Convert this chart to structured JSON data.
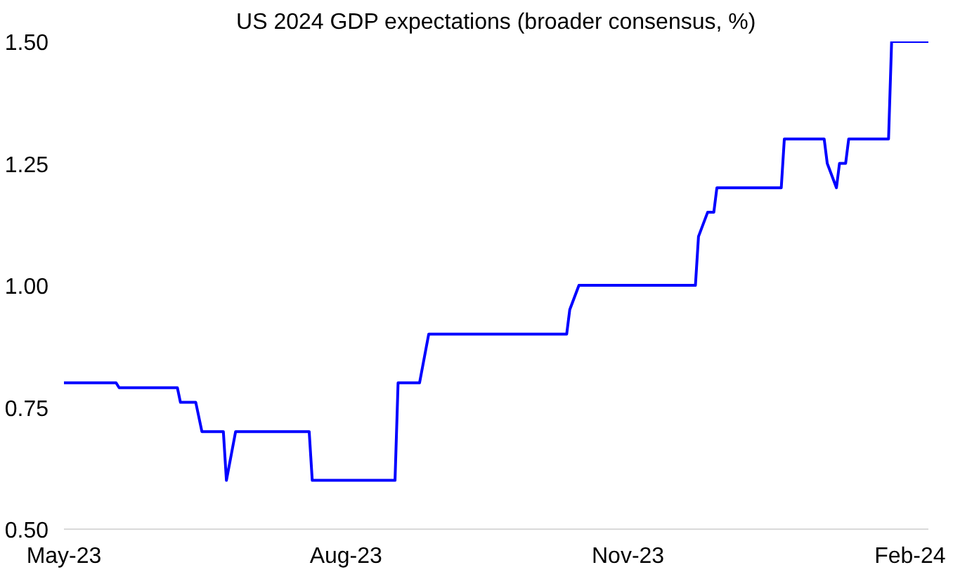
{
  "chart_data": {
    "type": "line",
    "title": "US 2024 GDP expectations (broader consensus, %)",
    "x": [
      "2023-05-01",
      "2023-05-18",
      "2023-05-19",
      "2023-06-07",
      "2023-06-08",
      "2023-06-13",
      "2023-06-15",
      "2023-06-22",
      "2023-06-23",
      "2023-06-26",
      "2023-07-20",
      "2023-07-21",
      "2023-08-17",
      "2023-08-18",
      "2023-08-25",
      "2023-08-28",
      "2023-10-12",
      "2023-10-13",
      "2023-10-16",
      "2023-11-23",
      "2023-11-24",
      "2023-11-27",
      "2023-11-29",
      "2023-11-30",
      "2023-12-21",
      "2023-12-22",
      "2024-01-04",
      "2024-01-05",
      "2024-01-08",
      "2024-01-09",
      "2024-01-11",
      "2024-01-12",
      "2024-01-25",
      "2024-01-26",
      "2024-02-07"
    ],
    "series": [
      {
        "color": "#0000ff",
        "values": [
          0.8,
          0.8,
          0.79,
          0.79,
          0.76,
          0.76,
          0.7,
          0.7,
          0.6,
          0.7,
          0.7,
          0.6,
          0.6,
          0.8,
          0.8,
          0.9,
          0.9,
          0.95,
          1.0,
          1.0,
          1.1,
          1.15,
          1.15,
          1.2,
          1.2,
          1.3,
          1.3,
          1.25,
          1.2,
          1.25,
          1.25,
          1.3,
          1.3,
          1.5,
          1.5
        ]
      }
    ],
    "xlim": [
      "2023-05-01",
      "2024-02-07"
    ],
    "xticks": [
      {
        "value": "2023-05-01",
        "label": "May-23"
      },
      {
        "value": "2023-08-01",
        "label": "Aug-23"
      },
      {
        "value": "2023-11-01",
        "label": "Nov-23"
      },
      {
        "value": "2024-02-01",
        "label": "Feb-24"
      }
    ],
    "ylim": [
      0.5,
      1.5
    ],
    "yticks": [
      {
        "value": 0.5,
        "label": "0.50"
      },
      {
        "value": 0.75,
        "label": "0.75"
      },
      {
        "value": 1.0,
        "label": "1.00"
      },
      {
        "value": 1.25,
        "label": "1.25"
      },
      {
        "value": 1.5,
        "label": "1.50"
      }
    ],
    "grid": false,
    "marker": "none",
    "line_style": "solid"
  }
}
